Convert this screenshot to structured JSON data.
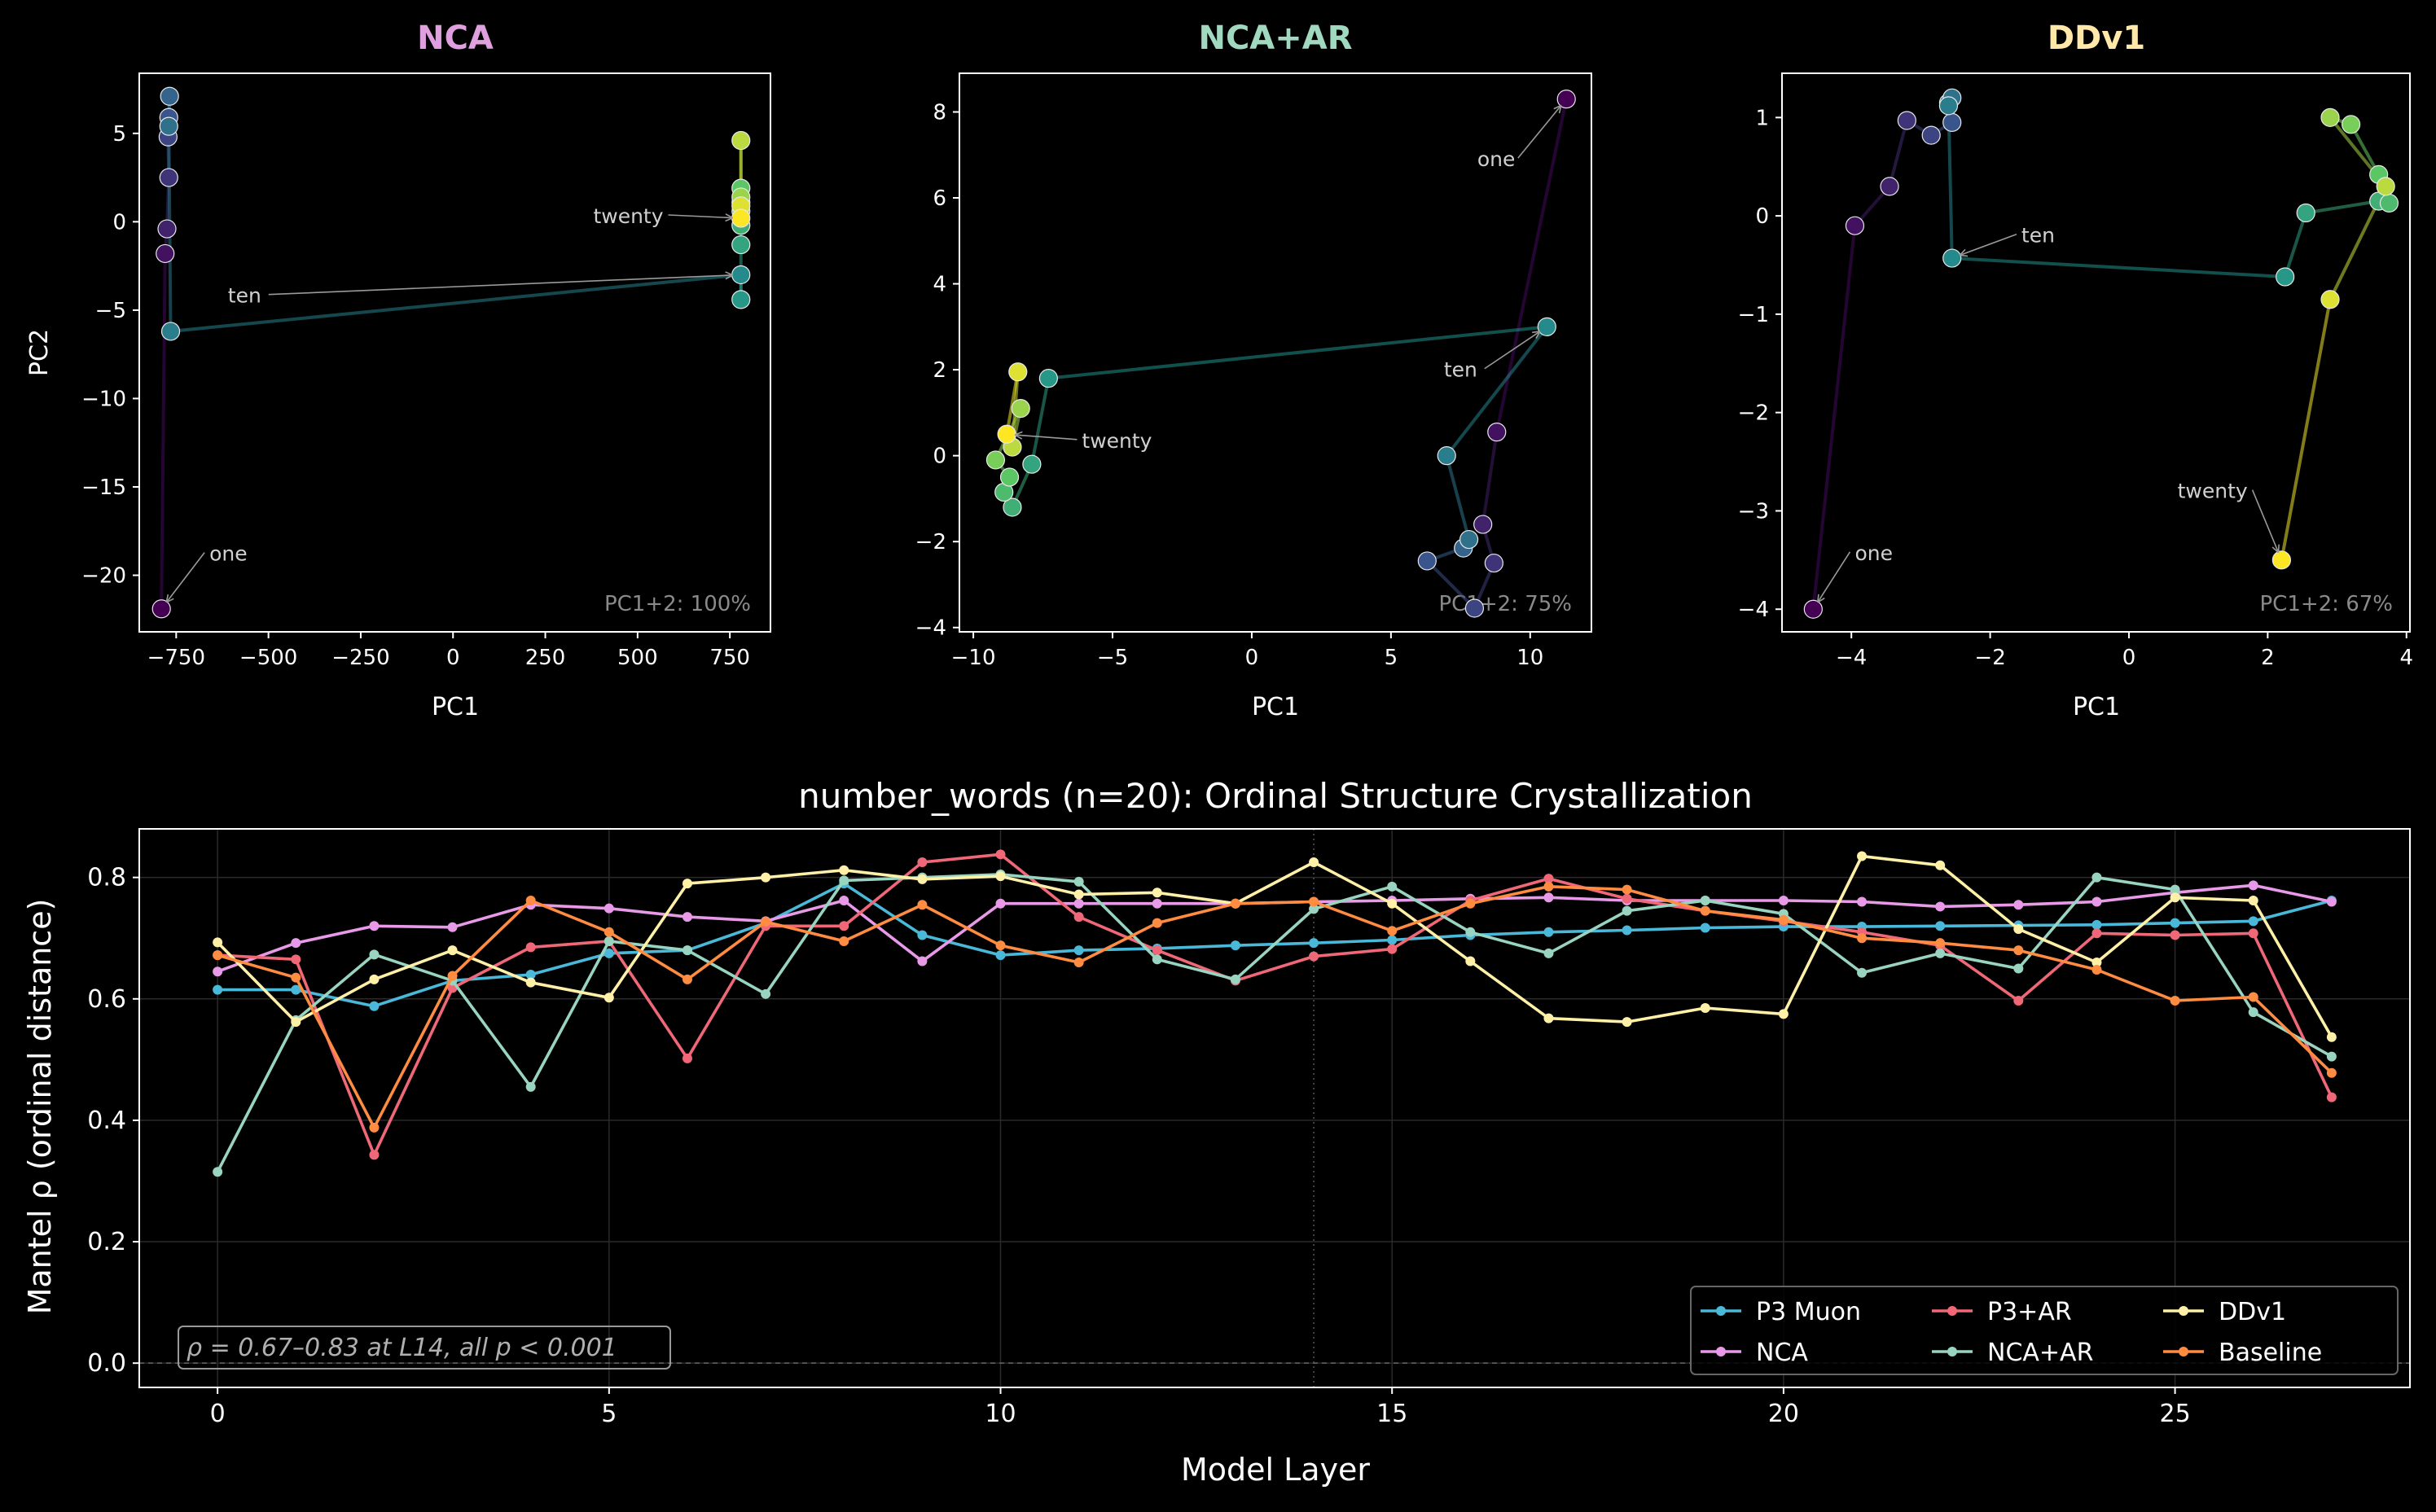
{
  "figure": {
    "background": "#000000",
    "text_color": "#ffffff"
  },
  "chart_data": [
    {
      "type": "scatter",
      "title": "NCA",
      "title_color": "#e0a0e0",
      "xlabel": "PC1",
      "ylabel": "PC2",
      "xlim": [
        -850,
        860
      ],
      "ylim": [
        -23.2,
        8.4
      ],
      "xticks": [
        -750,
        -500,
        -250,
        0,
        250,
        500,
        750
      ],
      "xtick_labels": [
        "−750",
        "−500",
        "−250",
        "0",
        "250",
        "500",
        "750"
      ],
      "yticks": [
        5,
        0,
        -5,
        -10,
        -15,
        -20
      ],
      "ytick_labels": [
        "5",
        "0",
        "−5",
        "−10",
        "−15",
        "−20"
      ],
      "variance_note": "PC1+2: 100%",
      "points": [
        {
          "x": -790,
          "y": -21.9
        },
        {
          "x": -780,
          "y": -1.8
        },
        {
          "x": -775,
          "y": -0.4
        },
        {
          "x": -770,
          "y": 2.5
        },
        {
          "x": -772,
          "y": 4.8
        },
        {
          "x": -770,
          "y": 5.9
        },
        {
          "x": -768,
          "y": 7.1
        },
        {
          "x": -770,
          "y": 5.4
        },
        {
          "x": -765,
          "y": -6.2
        },
        {
          "x": 780,
          "y": -3.0
        },
        {
          "x": 780,
          "y": -4.4
        },
        {
          "x": 780,
          "y": -1.3
        },
        {
          "x": 780,
          "y": -0.2
        },
        {
          "x": 780,
          "y": 1.1
        },
        {
          "x": 780,
          "y": 1.9
        },
        {
          "x": 780,
          "y": 0.6
        },
        {
          "x": 780,
          "y": 1.4
        },
        {
          "x": 780,
          "y": 4.6
        },
        {
          "x": 780,
          "y": 0.9
        },
        {
          "x": 780,
          "y": 0.2
        }
      ],
      "annotations": [
        {
          "text": "one",
          "point": 0,
          "tx": -660,
          "ty": -18.9
        },
        {
          "text": "ten",
          "point": 9,
          "tx": -610,
          "ty": -4.3
        },
        {
          "text": "twenty",
          "point": 19,
          "tx": 380,
          "ty": 0.2
        }
      ]
    },
    {
      "type": "scatter",
      "title": "NCA+AR",
      "title_color": "#a0d8c0",
      "xlabel": "PC1",
      "ylabel": "",
      "xlim": [
        -10.5,
        12.2
      ],
      "ylim": [
        -4.1,
        8.9
      ],
      "xticks": [
        -10,
        -5,
        0,
        5,
        10
      ],
      "xtick_labels": [
        "−10",
        "−5",
        "0",
        "5",
        "10"
      ],
      "yticks": [
        8,
        6,
        4,
        2,
        0,
        -2,
        -4
      ],
      "ytick_labels": [
        "8",
        "6",
        "4",
        "2",
        "0",
        "−2",
        "−4"
      ],
      "variance_note": "PC1+2: 75%",
      "points": [
        {
          "x": 11.3,
          "y": 8.3
        },
        {
          "x": 8.8,
          "y": 0.55
        },
        {
          "x": 8.3,
          "y": -1.6
        },
        {
          "x": 8.7,
          "y": -2.5
        },
        {
          "x": 8.0,
          "y": -3.55
        },
        {
          "x": 6.3,
          "y": -2.45
        },
        {
          "x": 7.6,
          "y": -2.15
        },
        {
          "x": 7.8,
          "y": -1.95
        },
        {
          "x": 7.0,
          "y": 0.0
        },
        {
          "x": 10.6,
          "y": 3.0
        },
        {
          "x": -7.3,
          "y": 1.8
        },
        {
          "x": -7.9,
          "y": -0.2
        },
        {
          "x": -8.6,
          "y": -1.2
        },
        {
          "x": -8.9,
          "y": -0.85
        },
        {
          "x": -8.7,
          "y": -0.5
        },
        {
          "x": -9.2,
          "y": -0.1
        },
        {
          "x": -8.3,
          "y": 1.1
        },
        {
          "x": -8.6,
          "y": 0.2
        },
        {
          "x": -8.4,
          "y": 1.95
        },
        {
          "x": -8.8,
          "y": 0.5
        }
      ],
      "annotations": [
        {
          "text": "one",
          "point": 0,
          "tx": 8.1,
          "ty": 6.85
        },
        {
          "text": "ten",
          "point": 9,
          "tx": 6.9,
          "ty": 1.95
        },
        {
          "text": "twenty",
          "point": 19,
          "tx": -6.1,
          "ty": 0.3
        }
      ]
    },
    {
      "type": "scatter",
      "title": "DDv1",
      "title_color": "#ffe8a8",
      "xlabel": "PC1",
      "ylabel": "",
      "xlim": [
        -5.0,
        4.05
      ],
      "ylim": [
        -4.23,
        1.45
      ],
      "xticks": [
        -4,
        -2,
        0,
        2,
        4
      ],
      "xtick_labels": [
        "−4",
        "−2",
        "0",
        "2",
        "4"
      ],
      "yticks": [
        1,
        0,
        -1,
        -2,
        -3,
        -4
      ],
      "ytick_labels": [
        "1",
        "0",
        "−1",
        "−2",
        "−3",
        "−4"
      ],
      "variance_note": "PC1+2: 67%",
      "points": [
        {
          "x": -4.55,
          "y": -4.0
        },
        {
          "x": -3.95,
          "y": -0.1
        },
        {
          "x": -3.45,
          "y": 0.3
        },
        {
          "x": -3.2,
          "y": 0.97
        },
        {
          "x": -2.85,
          "y": 0.82
        },
        {
          "x": -2.55,
          "y": 0.95
        },
        {
          "x": -2.6,
          "y": 1.15
        },
        {
          "x": -2.55,
          "y": 1.2
        },
        {
          "x": -2.6,
          "y": 1.12
        },
        {
          "x": -2.55,
          "y": -0.43
        },
        {
          "x": 2.25,
          "y": -0.62
        },
        {
          "x": 2.55,
          "y": 0.03
        },
        {
          "x": 3.6,
          "y": 0.15
        },
        {
          "x": 3.75,
          "y": 0.13
        },
        {
          "x": 3.6,
          "y": 0.42
        },
        {
          "x": 3.2,
          "y": 0.93
        },
        {
          "x": 2.9,
          "y": 1.0
        },
        {
          "x": 3.7,
          "y": 0.3
        },
        {
          "x": 2.9,
          "y": -0.85
        },
        {
          "x": 2.2,
          "y": -3.5
        }
      ],
      "annotations": [
        {
          "text": "one",
          "point": 0,
          "tx": -3.95,
          "ty": -3.45
        },
        {
          "text": "ten",
          "point": 9,
          "tx": -1.55,
          "ty": -0.22
        },
        {
          "text": "twenty",
          "point": 19,
          "tx": 0.7,
          "ty": -2.82
        }
      ]
    },
    {
      "type": "line",
      "title": "number_words (n=20): Ordinal Structure Crystallization",
      "xlabel": "Model Layer",
      "ylabel": "Mantel ρ (ordinal distance)",
      "xlim": [
        -1,
        28
      ],
      "ylim": [
        -0.04,
        0.88
      ],
      "xticks": [
        0,
        5,
        10,
        15,
        20,
        25
      ],
      "xtick_labels": [
        "0",
        "5",
        "10",
        "15",
        "20",
        "25"
      ],
      "yticks": [
        0.0,
        0.2,
        0.4,
        0.6,
        0.8
      ],
      "ytick_labels": [
        "0.0",
        "0.2",
        "0.4",
        "0.6",
        "0.8"
      ],
      "grid": true,
      "vline_x": 14,
      "hline_y": 0,
      "annotation": "ρ = 0.67–0.83 at L14, all p < 0.001",
      "legend_position": "lower-right",
      "x": [
        0,
        1,
        2,
        3,
        4,
        5,
        6,
        7,
        8,
        9,
        10,
        11,
        12,
        13,
        14,
        15,
        16,
        17,
        18,
        19,
        20,
        21,
        22,
        23,
        24,
        25,
        26,
        27
      ],
      "series": [
        {
          "name": "P3 Muon",
          "color": "#4ab8d8",
          "values": [
            0.615,
            0.615,
            0.588,
            0.63,
            0.64,
            0.675,
            0.68,
            0.725,
            0.79,
            0.705,
            0.672,
            0.68,
            0.683,
            0.688,
            0.692,
            0.697,
            0.705,
            0.71,
            0.713,
            0.717,
            0.719,
            0.719,
            0.72,
            0.721,
            0.722,
            0.725,
            0.728,
            0.762
          ]
        },
        {
          "name": "NCA",
          "color": "#e89ae8",
          "values": [
            0.645,
            0.692,
            0.72,
            0.718,
            0.755,
            0.749,
            0.735,
            0.728,
            0.762,
            0.662,
            0.757,
            0.757,
            0.757,
            0.757,
            0.76,
            0.762,
            0.765,
            0.767,
            0.762,
            0.762,
            0.762,
            0.76,
            0.752,
            0.755,
            0.76,
            0.775,
            0.787,
            0.76
          ]
        },
        {
          "name": "P3+AR",
          "color": "#f06878",
          "values": [
            0.672,
            0.665,
            0.343,
            0.618,
            0.685,
            0.695,
            0.502,
            0.72,
            0.72,
            0.825,
            0.838,
            0.735,
            0.68,
            0.63,
            0.67,
            0.682,
            0.762,
            0.798,
            0.765,
            0.745,
            0.728,
            0.71,
            0.688,
            0.597,
            0.708,
            0.705,
            0.708,
            0.438
          ]
        },
        {
          "name": "NCA+AR",
          "color": "#98d4c0",
          "values": [
            0.315,
            0.565,
            0.673,
            0.63,
            0.455,
            0.695,
            0.68,
            0.608,
            0.795,
            0.8,
            0.805,
            0.793,
            0.665,
            0.632,
            0.748,
            0.785,
            0.71,
            0.675,
            0.745,
            0.762,
            0.74,
            0.643,
            0.675,
            0.65,
            0.8,
            0.78,
            0.578,
            0.505
          ]
        },
        {
          "name": "DDv1",
          "color": "#fff0a8",
          "values": [
            0.693,
            0.562,
            0.632,
            0.68,
            0.627,
            0.602,
            0.79,
            0.8,
            0.812,
            0.797,
            0.802,
            0.772,
            0.775,
            0.757,
            0.825,
            0.757,
            0.662,
            0.568,
            0.562,
            0.585,
            0.575,
            0.835,
            0.82,
            0.715,
            0.66,
            0.767,
            0.762,
            0.537
          ]
        },
        {
          "name": "Baseline",
          "color": "#ff8c40",
          "values": [
            0.672,
            0.635,
            0.388,
            0.638,
            0.762,
            0.71,
            0.632,
            0.727,
            0.695,
            0.755,
            0.688,
            0.66,
            0.725,
            0.757,
            0.76,
            0.712,
            0.757,
            0.785,
            0.78,
            0.745,
            0.73,
            0.7,
            0.692,
            0.68,
            0.648,
            0.597,
            0.603,
            0.478
          ]
        }
      ]
    }
  ]
}
